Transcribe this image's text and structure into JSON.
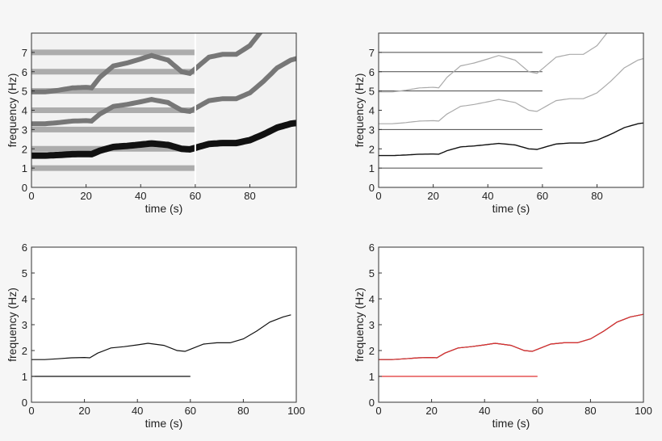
{
  "chart_data": [
    {
      "type": "heatmap",
      "panel": "top-left",
      "xlabel": "time (s)",
      "ylabel": "frequency (Hz)",
      "xlim": [
        0,
        97
      ],
      "ylim": [
        0,
        8
      ],
      "xticks": [
        "0",
        "20",
        "40",
        "60",
        "80"
      ],
      "yticks": [
        "0",
        "1",
        "2",
        "3",
        "4",
        "5",
        "6",
        "7"
      ],
      "colormap": "grayscale-inverted",
      "ridge": {
        "t": [
          0,
          5,
          10,
          15,
          20,
          22,
          25,
          30,
          35,
          40,
          44,
          50,
          55,
          58,
          60,
          65,
          70,
          75,
          80,
          85,
          90,
          95,
          100
        ],
        "f": [
          1.65,
          1.65,
          1.68,
          1.72,
          1.73,
          1.72,
          1.9,
          2.1,
          2.15,
          2.22,
          2.28,
          2.2,
          2.0,
          1.97,
          2.05,
          2.25,
          2.3,
          2.3,
          2.45,
          2.75,
          3.1,
          3.3,
          3.4
        ]
      },
      "harmonics": [
        1,
        2,
        3
      ],
      "constant_lines_hz": [
        1,
        2,
        3,
        4,
        5,
        6,
        7
      ],
      "constant_lines_end_s": 60
    },
    {
      "type": "heatmap",
      "panel": "top-right",
      "xlabel": "time (s)",
      "ylabel": "frequency (Hz)",
      "xlim": [
        0,
        97
      ],
      "ylim": [
        0,
        8
      ],
      "xticks": [
        "0",
        "20",
        "40",
        "60",
        "80"
      ],
      "yticks": [
        "0",
        "1",
        "2",
        "3",
        "4",
        "5",
        "6",
        "7"
      ],
      "colormap": "grayscale-inverted",
      "harmonics": [
        1,
        2,
        3
      ],
      "constant_lines_hz": [
        1,
        3,
        5,
        6,
        7
      ],
      "constant_lines_end_s": 60
    },
    {
      "type": "line",
      "panel": "bottom-left",
      "xlabel": "time (s)",
      "ylabel": "frequency (Hz)",
      "xlim": [
        0,
        100
      ],
      "ylim": [
        0,
        6
      ],
      "xticks": [
        "0",
        "20",
        "40",
        "60",
        "80",
        "100"
      ],
      "yticks": [
        "0",
        "1",
        "2",
        "3",
        "4",
        "5",
        "6"
      ],
      "series": [
        {
          "color": "#111111",
          "t": [
            0,
            5,
            10,
            15,
            20,
            22,
            25,
            30,
            35,
            40,
            44,
            50,
            55,
            58,
            60,
            65,
            70,
            75,
            80,
            85,
            90,
            95,
            98
          ],
          "f": [
            1.65,
            1.65,
            1.68,
            1.72,
            1.73,
            1.72,
            1.9,
            2.1,
            2.15,
            2.22,
            2.28,
            2.2,
            2.0,
            1.97,
            2.05,
            2.25,
            2.3,
            2.3,
            2.45,
            2.75,
            3.1,
            3.3,
            3.38
          ]
        },
        {
          "color": "#111111",
          "t": [
            0,
            60
          ],
          "f": [
            1.0,
            1.0
          ]
        }
      ]
    },
    {
      "type": "line",
      "panel": "bottom-right",
      "xlabel": "time (s)",
      "ylabel": "frequency (Hz)",
      "xlim": [
        0,
        100
      ],
      "ylim": [
        0,
        6
      ],
      "xticks": [
        "0",
        "20",
        "40",
        "60",
        "80",
        "100"
      ],
      "yticks": [
        "0",
        "1",
        "2",
        "3",
        "4",
        "5",
        "6"
      ],
      "series": [
        {
          "color": "#111111",
          "t": [
            0,
            5,
            10,
            15,
            20,
            22,
            25,
            30,
            35,
            40,
            44,
            50,
            55,
            58,
            60,
            65,
            70,
            75,
            80,
            85,
            90,
            95,
            100
          ],
          "f": [
            1.65,
            1.65,
            1.68,
            1.72,
            1.73,
            1.72,
            1.9,
            2.1,
            2.15,
            2.22,
            2.28,
            2.2,
            2.0,
            1.97,
            2.05,
            2.25,
            2.3,
            2.3,
            2.45,
            2.75,
            3.1,
            3.3,
            3.4
          ]
        },
        {
          "color": "#e03030",
          "t": [
            0,
            5,
            10,
            15,
            20,
            22,
            25,
            30,
            35,
            40,
            44,
            50,
            55,
            58,
            60,
            65,
            70,
            75,
            80,
            85,
            90,
            95,
            100
          ],
          "f": [
            1.65,
            1.65,
            1.68,
            1.72,
            1.73,
            1.72,
            1.9,
            2.1,
            2.15,
            2.22,
            2.28,
            2.2,
            2.0,
            1.97,
            2.05,
            2.25,
            2.3,
            2.3,
            2.45,
            2.75,
            3.1,
            3.3,
            3.4
          ]
        },
        {
          "color": "#e03030",
          "t": [
            0,
            60
          ],
          "f": [
            1.0,
            1.0
          ]
        }
      ]
    }
  ]
}
